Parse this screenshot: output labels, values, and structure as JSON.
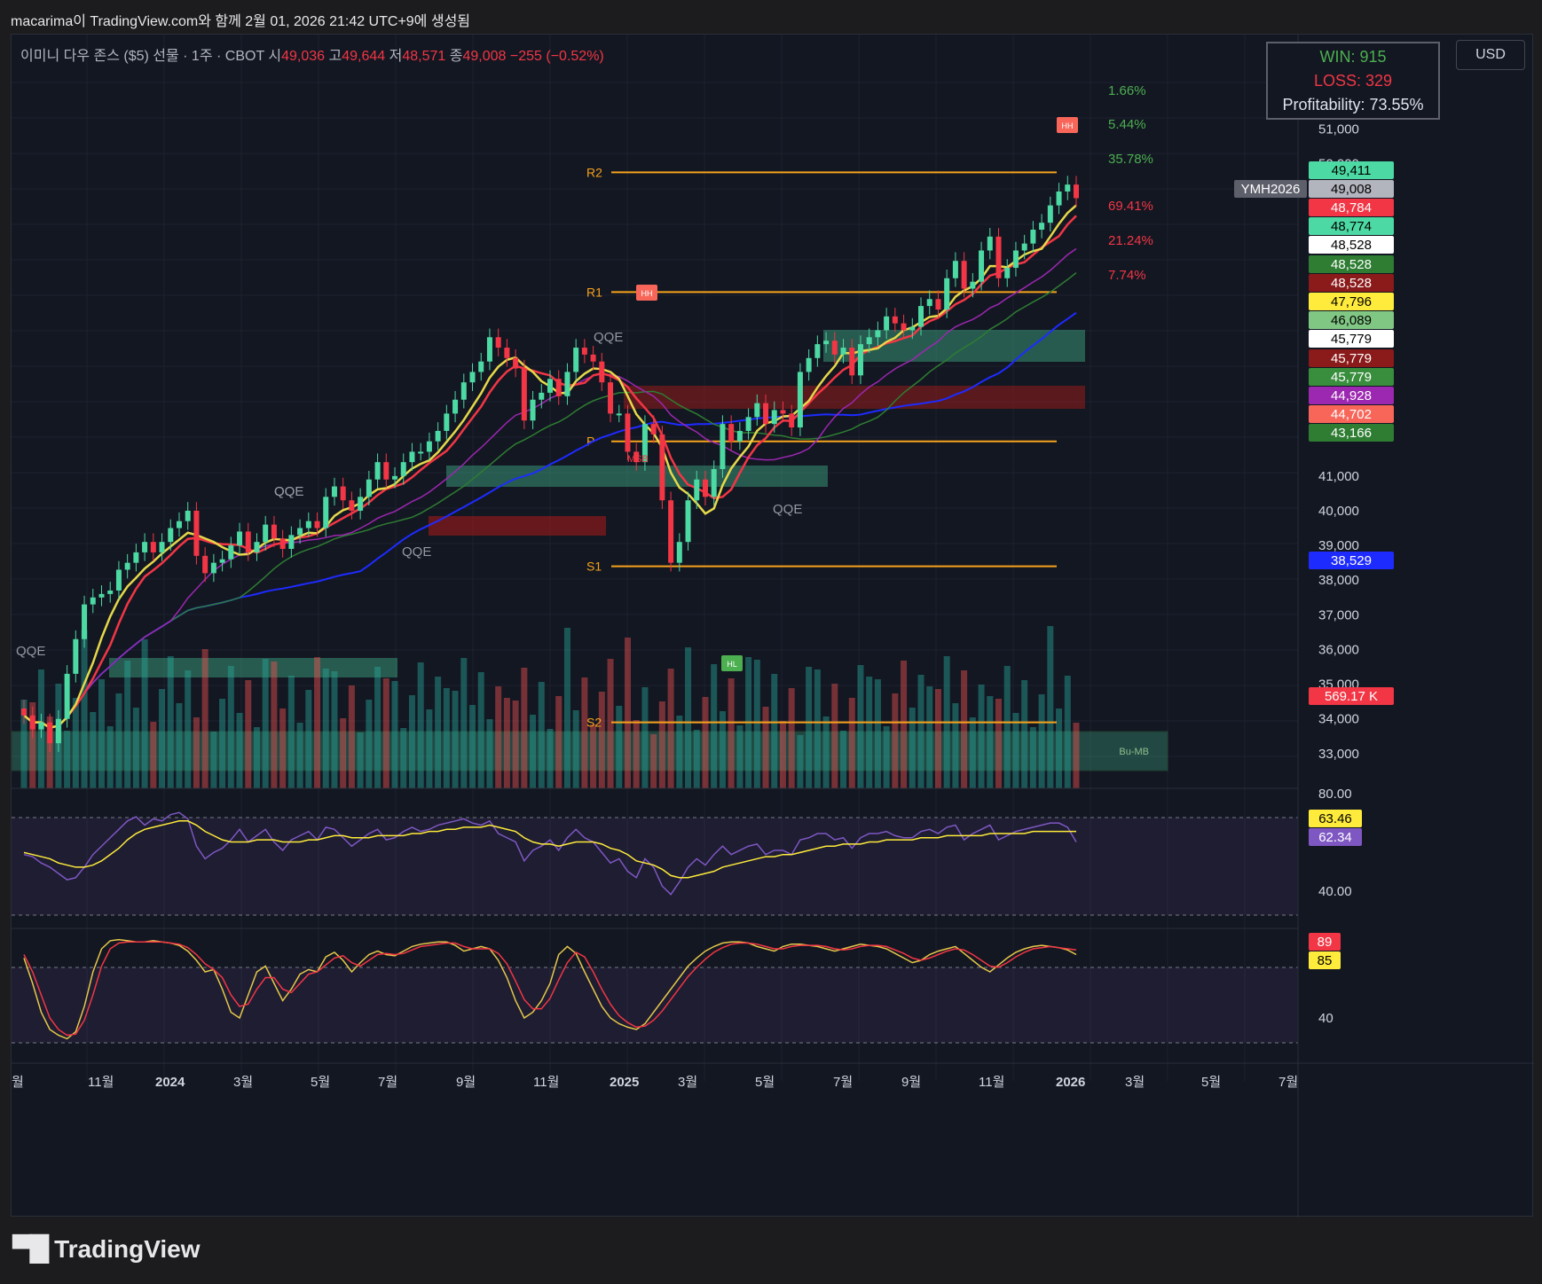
{
  "header": {
    "title": "macarima이 TradingView.com와 함께 2월 01, 2026 21:42 UTC+9에 생성됨"
  },
  "symbol": {
    "name": "이미니 다우 존스 ($5) 선물 · 1주 · CBOT",
    "open_label": "시",
    "open": "49,036",
    "high_label": "고",
    "high": "49,644",
    "low_label": "저",
    "low": "48,571",
    "close_label": "종",
    "close": "49,008",
    "change": "−255 (−0.52%)"
  },
  "currency_button": "USD",
  "strategy_stats": {
    "win": "WIN: 915",
    "loss": "LOSS: 329",
    "profitability": "Profitability: 73.55%"
  },
  "ticker_tag": "YMH2026",
  "chart_data": {
    "type": "candlestick",
    "timeframe": "1W",
    "x_labels": [
      "월",
      "11월",
      "2024",
      "3월",
      "5월",
      "7월",
      "9월",
      "11월",
      "2025",
      "3월",
      "5월",
      "7월",
      "9월",
      "11월",
      "2026",
      "3월",
      "5월",
      "7월"
    ],
    "price_ticks": [
      "52,000",
      "51,000",
      "50,000",
      "41,000",
      "40,000",
      "39,000",
      "38,000",
      "37,000",
      "36,000",
      "35,000",
      "34,000",
      "33,000"
    ],
    "price_axis_range": [
      32000,
      52700
    ],
    "close_series": [
      34100,
      33700,
      33900,
      33300,
      34000,
      35300,
      36300,
      37300,
      37500,
      37600,
      37700,
      38300,
      38500,
      38800,
      39100,
      38800,
      39100,
      39500,
      39700,
      40000,
      38700,
      38200,
      38500,
      38600,
      39000,
      39400,
      38800,
      39100,
      39600,
      39200,
      38900,
      39300,
      39500,
      39700,
      39500,
      40400,
      40700,
      40300,
      40000,
      40400,
      40900,
      41400,
      40900,
      41000,
      41400,
      41700,
      41700,
      42000,
      42300,
      42800,
      43200,
      43700,
      44000,
      44300,
      45000,
      44700,
      44400,
      44100,
      42600,
      43200,
      43400,
      43800,
      43300,
      44000,
      44700,
      44500,
      44300,
      43700,
      42800,
      42800,
      41700,
      41400,
      42500,
      42200,
      40300,
      38500,
      39100,
      40300,
      40900,
      40400,
      41200,
      42500,
      42000,
      42300,
      42700,
      43100,
      42500,
      42900,
      42800,
      42400,
      44000,
      44400,
      44800,
      44900,
      44500,
      44700,
      43900,
      44800,
      45000,
      45200,
      45600,
      45400,
      45200,
      45300,
      45900,
      46100,
      45800,
      46700,
      47200,
      46400,
      46600,
      47500,
      47900,
      46700,
      47000,
      47500,
      47700,
      48100,
      48300,
      48800,
      49200,
      49400,
      49008
    ],
    "volume_ticks": [
      "569.17 K"
    ],
    "horizontal_levels": [
      {
        "label": "R2",
        "value": 49750
      },
      {
        "label": "R1",
        "value": 46300
      },
      {
        "label": "P",
        "value": 42000
      },
      {
        "label": "S1",
        "value": 38400
      },
      {
        "label": "S2",
        "value": 33900
      }
    ],
    "target_percentages": [
      {
        "text": "1.66%",
        "color": "#4caf50"
      },
      {
        "text": "5.44%",
        "color": "#4caf50"
      },
      {
        "text": "35.78%",
        "color": "#4caf50"
      },
      {
        "text": "69.41%",
        "color": "#f23645"
      },
      {
        "text": "21.24%",
        "color": "#f23645"
      },
      {
        "text": "7.74%",
        "color": "#f23645"
      }
    ],
    "price_tags": [
      {
        "text": "49,411",
        "bg": "#4cd9a3",
        "fg": "#000000"
      },
      {
        "text": "49,008",
        "bg": "#b2b5be",
        "fg": "#000000"
      },
      {
        "text": "48,784",
        "bg": "#f23645",
        "fg": "#ffffff"
      },
      {
        "text": "48,774",
        "bg": "#4cd9a3",
        "fg": "#000000"
      },
      {
        "text": "48,528",
        "bg": "#ffffff",
        "fg": "#000000"
      },
      {
        "text": "48,528",
        "bg": "#2e7d32",
        "fg": "#ffffff"
      },
      {
        "text": "48,528",
        "bg": "#8b1a1a",
        "fg": "#ffffff"
      },
      {
        "text": "47,796",
        "bg": "#ffeb3b",
        "fg": "#000000"
      },
      {
        "text": "46,089",
        "bg": "#81c784",
        "fg": "#000000"
      },
      {
        "text": "45,779",
        "bg": "#ffffff",
        "fg": "#000000"
      },
      {
        "text": "45,779",
        "bg": "#8b1a1a",
        "fg": "#ffffff"
      },
      {
        "text": "45,779",
        "bg": "#388e3c",
        "fg": "#ffffff"
      },
      {
        "text": "44,928",
        "bg": "#9c27b0",
        "fg": "#ffffff"
      },
      {
        "text": "44,702",
        "bg": "#f8665a",
        "fg": "#ffffff"
      },
      {
        "text": "43,166",
        "bg": "#2e7d32",
        "fg": "#ffffff"
      },
      {
        "text": "38,529",
        "bg": "#1e2bff",
        "fg": "#ffffff"
      },
      {
        "text": "569.17 K",
        "bg": "#f23645",
        "fg": "#ffffff"
      }
    ],
    "annotations": [
      "QQE",
      "QQE",
      "QQE",
      "QQE",
      "QQE",
      "QQE",
      "HH",
      "HH",
      "HL",
      "MSB",
      "Bu-MB"
    ],
    "rsi": {
      "ticks": [
        "80.00",
        "40.00"
      ],
      "tags": [
        {
          "text": "63.46",
          "bg": "#ffeb3b",
          "fg": "#000000"
        },
        {
          "text": "62.34",
          "bg": "#7e57c2",
          "fg": "#ffffff"
        }
      ],
      "values": [
        56,
        55,
        52,
        50,
        47,
        44,
        45,
        50,
        56,
        60,
        64,
        68,
        72,
        74,
        70,
        73,
        72,
        75,
        76,
        73,
        60,
        54,
        57,
        59,
        63,
        68,
        62,
        65,
        68,
        62,
        58,
        63,
        65,
        67,
        63,
        69,
        68,
        64,
        60,
        63,
        66,
        68,
        63,
        64,
        67,
        69,
        67,
        68,
        70,
        71,
        72,
        73,
        71,
        70,
        72,
        66,
        64,
        62,
        53,
        58,
        60,
        63,
        58,
        64,
        68,
        64,
        62,
        57,
        52,
        54,
        48,
        45,
        54,
        50,
        41,
        37,
        43,
        50,
        54,
        51,
        56,
        60,
        56,
        58,
        60,
        61,
        56,
        58,
        58,
        56,
        63,
        64,
        66,
        66,
        63,
        64,
        59,
        64,
        66,
        66,
        67,
        65,
        64,
        64,
        67,
        68,
        66,
        69,
        70,
        63,
        66,
        68,
        70,
        63,
        65,
        67,
        68,
        69,
        70,
        71,
        71,
        69,
        62
      ],
      "signal": [
        57,
        56,
        55,
        54,
        52,
        51,
        50,
        50,
        51,
        53,
        56,
        59,
        63,
        66,
        68,
        69,
        70,
        71,
        72,
        72,
        70,
        67,
        65,
        63,
        62,
        62,
        62,
        63,
        63,
        63,
        62,
        62,
        62,
        63,
        63,
        64,
        65,
        65,
        64,
        64,
        64,
        65,
        65,
        65,
        65,
        66,
        66,
        67,
        67,
        68,
        68,
        69,
        69,
        69,
        70,
        69,
        68,
        67,
        64,
        62,
        61,
        61,
        60,
        61,
        62,
        62,
        62,
        61,
        59,
        58,
        56,
        53,
        52,
        51,
        49,
        46,
        45,
        45,
        46,
        47,
        48,
        50,
        51,
        52,
        53,
        54,
        55,
        55,
        56,
        56,
        57,
        58,
        59,
        60,
        60,
        61,
        61,
        61,
        62,
        62,
        63,
        63,
        63,
        63,
        64,
        64,
        64,
        65,
        65,
        65,
        65,
        65,
        66,
        66,
        66,
        66,
        66,
        67,
        67,
        67,
        67,
        67,
        67
      ]
    },
    "stoch": {
      "ticks": [
        "40"
      ],
      "tags": [
        {
          "text": "89",
          "bg": "#f23645",
          "fg": "#ffffff"
        },
        {
          "text": "85",
          "bg": "#ffeb3b",
          "fg": "#000000"
        }
      ],
      "k": [
        82,
        60,
        35,
        20,
        15,
        12,
        18,
        40,
        70,
        90,
        97,
        98,
        97,
        96,
        96,
        97,
        96,
        95,
        93,
        88,
        80,
        70,
        72,
        55,
        35,
        30,
        50,
        70,
        75,
        60,
        45,
        55,
        68,
        72,
        70,
        83,
        87,
        80,
        70,
        78,
        85,
        88,
        85,
        84,
        88,
        92,
        94,
        95,
        96,
        96,
        93,
        88,
        90,
        92,
        90,
        80,
        65,
        45,
        30,
        35,
        45,
        60,
        85,
        92,
        86,
        70,
        55,
        40,
        30,
        25,
        22,
        20,
        25,
        35,
        45,
        55,
        65,
        75,
        82,
        88,
        92,
        95,
        96,
        96,
        95,
        92,
        90,
        88,
        92,
        94,
        94,
        93,
        92,
        90,
        88,
        90,
        92,
        94,
        93,
        92,
        90,
        86,
        82,
        78,
        80,
        85,
        88,
        90,
        92,
        86,
        80,
        74,
        70,
        76,
        82,
        87,
        90,
        92,
        93,
        92,
        91,
        89,
        85
      ],
      "d": [
        85,
        70,
        50,
        30,
        20,
        15,
        16,
        28,
        50,
        75,
        90,
        95,
        96,
        96,
        96,
        96,
        96,
        95,
        94,
        91,
        85,
        77,
        72,
        65,
        50,
        40,
        42,
        55,
        65,
        65,
        55,
        52,
        60,
        68,
        70,
        76,
        82,
        84,
        78,
        75,
        80,
        85,
        86,
        85,
        86,
        89,
        92,
        93,
        94,
        95,
        95,
        92,
        90,
        90,
        90,
        86,
        77,
        62,
        46,
        38,
        38,
        47,
        63,
        78,
        87,
        83,
        70,
        55,
        42,
        32,
        26,
        22,
        23,
        28,
        36,
        46,
        56,
        66,
        74,
        81,
        87,
        91,
        94,
        95,
        95,
        94,
        92,
        90,
        90,
        92,
        93,
        93,
        93,
        92,
        90,
        89,
        90,
        92,
        93,
        93,
        92,
        89,
        86,
        82,
        80,
        82,
        85,
        88,
        90,
        89,
        85,
        80,
        75,
        74,
        78,
        83,
        87,
        90,
        91,
        92,
        91,
        90,
        89
      ]
    }
  },
  "footer": {
    "brand": "TradingView"
  }
}
